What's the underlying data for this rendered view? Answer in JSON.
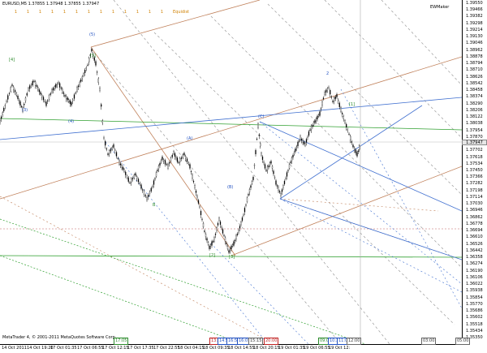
{
  "chart": {
    "symbol_line": "EURUSD,M5  1.37855 1.37948 1.37855 1.37947",
    "indicator_label": "EWMaker",
    "copyright": "MetaTrader 4, © 2001-2011 MetaQuotes Software Corp.",
    "current_price": "1.37947"
  },
  "toolbar": {
    "buttons": [
      "1",
      "1",
      "1",
      "1",
      "1",
      "1",
      "1",
      "1",
      "1",
      "1",
      "1",
      "1",
      "1"
    ],
    "equidistant_label": "Equidist"
  },
  "price_axis": [
    "1.39550",
    "1.39466",
    "1.39382",
    "1.39298",
    "1.39214",
    "1.39130",
    "1.39046",
    "1.38962",
    "1.38878",
    "1.38794",
    "1.38710",
    "1.38626",
    "1.38542",
    "1.38458",
    "1.38374",
    "1.38290",
    "1.38206",
    "1.38122",
    "1.38038",
    "1.37954",
    "1.37870",
    "1.37786",
    "1.37702",
    "1.37618",
    "1.37534",
    "1.37450",
    "1.37366",
    "1.37282",
    "1.37198",
    "1.37114",
    "1.37030",
    "1.36946",
    "1.36862",
    "1.36778",
    "1.36694",
    "1.36610",
    "1.36526",
    "1.36442",
    "1.36358",
    "1.36274",
    "1.36190",
    "1.36106",
    "1.36022",
    "1.35938",
    "1.35854",
    "1.35770",
    "1.35686",
    "1.35602",
    "1.35518",
    "1.35434",
    "1.35350"
  ],
  "time_axis": [
    "14 Oct 2011",
    "14 Oct 19:20",
    "17 Oct 01:35",
    "17 Oct 06:55",
    "17 Oct 12:15",
    "17 Oct 17:35",
    "17 Oct 22:55",
    "18 Oct 04:15",
    "18 Oct 09:35",
    "18 Oct 14:55",
    "18 Oct 20:15",
    "19 Oct 01:35",
    "19 Oct 06:55",
    "19 Oct 12:"
  ],
  "bottom_boxes": [
    {
      "text": "17:05",
      "color": "green"
    },
    {
      "text": "13:00",
      "color": "red"
    },
    {
      "text": "14:55",
      "color": "blue"
    },
    {
      "text": "16:54",
      "color": "blue"
    },
    {
      "text": "16:05",
      "color": "blue"
    },
    {
      "text": "15:15",
      "color": "gray"
    },
    {
      "text": "20:00",
      "color": "red"
    },
    {
      "text": "09:00",
      "color": "green"
    },
    {
      "text": "10:30",
      "color": "blue"
    },
    {
      "text": "11:00",
      "color": "blue"
    },
    {
      "text": "12:00",
      "color": "gray"
    },
    {
      "text": "03:00",
      "color": "gray"
    },
    {
      "text": "05:00",
      "color": "gray"
    }
  ],
  "wave_labels": [
    {
      "text": "[4]",
      "color": "green"
    },
    {
      "text": "(3)",
      "color": "blue"
    },
    {
      "text": "(4)",
      "color": "blue"
    },
    {
      "text": "(5)",
      "color": "blue"
    },
    {
      "text": "[5]",
      "color": "green"
    },
    {
      "text": "B",
      "color": "green"
    },
    {
      "text": "(A)",
      "color": "blue"
    },
    {
      "text": "[2]",
      "color": "green"
    },
    {
      "text": "(B)",
      "color": "blue"
    },
    {
      "text": "[3]",
      "color": "green"
    },
    {
      "text": "(C)",
      "color": "blue"
    },
    {
      "text": "2",
      "color": "blue"
    },
    {
      "text": "[1]",
      "color": "green"
    }
  ],
  "colors": {
    "candle": "#000000",
    "fork_brown": "#c07a50",
    "fork_blue": "#4070d0",
    "fork_gray": "#999999",
    "green_line": "#30a030",
    "red_dotted": "#d05050"
  }
}
